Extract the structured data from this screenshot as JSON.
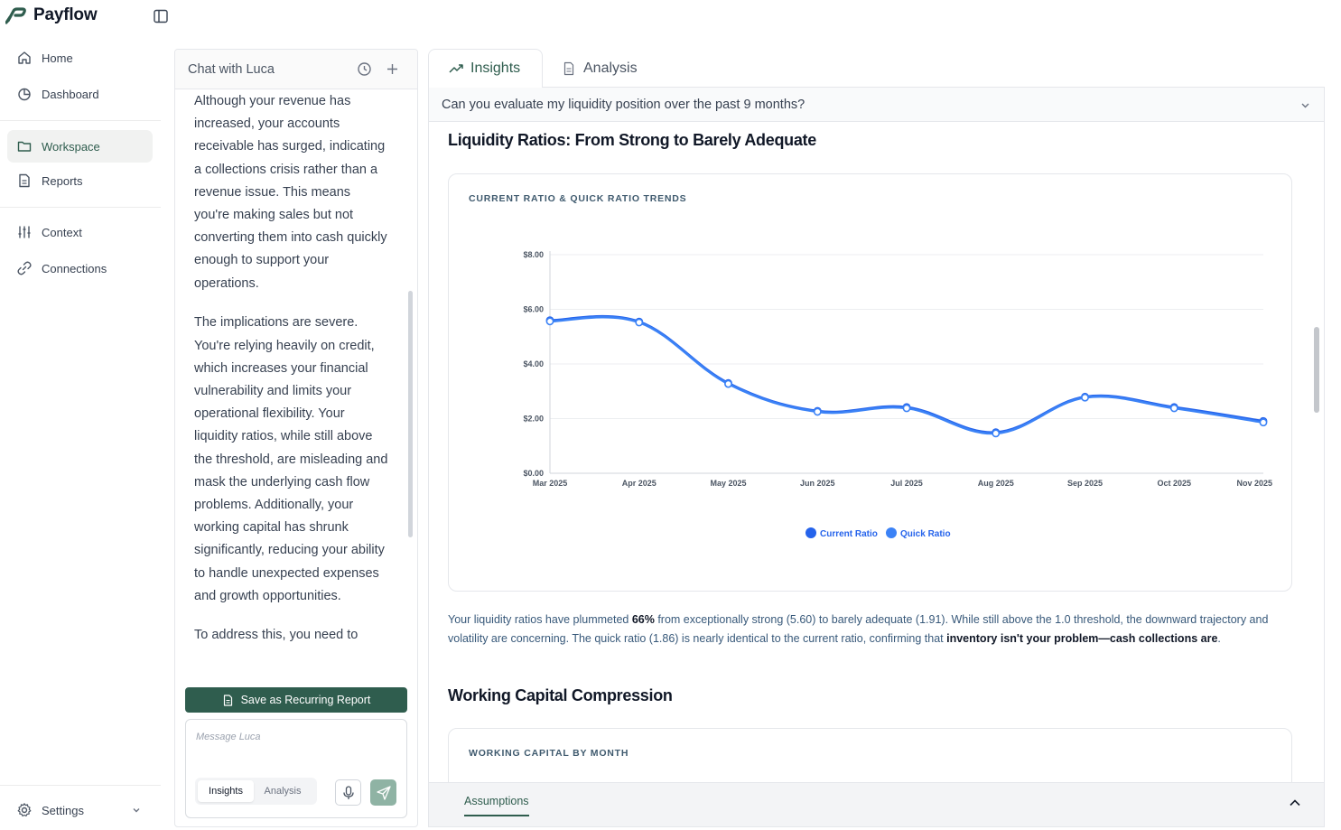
{
  "app": {
    "name": "Payflow"
  },
  "sidebar": {
    "items": [
      {
        "label": "Home",
        "icon": "home-icon"
      },
      {
        "label": "Dashboard",
        "icon": "pie-chart-icon"
      },
      {
        "label": "Workspace",
        "icon": "folder-icon",
        "active": true
      },
      {
        "label": "Reports",
        "icon": "document-icon"
      },
      {
        "label": "Context",
        "icon": "sliders-icon"
      },
      {
        "label": "Connections",
        "icon": "link-icon"
      }
    ],
    "settings_label": "Settings"
  },
  "chat": {
    "title": "Chat with Luca",
    "paragraphs": [
      "Although your revenue has increased, your accounts receivable has surged, indicating a collections crisis rather than a revenue issue. This means you're making sales but not converting them into cash quickly enough to support your operations.",
      "The implications are severe. You're relying heavily on credit, which increases your financial vulnerability and limits your operational flexibility. Your liquidity ratios, while still above the threshold, are misleading and mask the underlying cash flow problems. Additionally, your working capital has shrunk significantly, reducing your ability to handle unexpected expenses and growth opportunities.",
      "To address this, you need to"
    ],
    "save_button": "Save as Recurring Report",
    "input_placeholder": "Message Luca",
    "mode_options": [
      "Insights",
      "Analysis"
    ],
    "mode_selected": "Insights"
  },
  "tabs": [
    {
      "label": "Insights",
      "icon": "trend-up-icon",
      "active": true
    },
    {
      "label": "Analysis",
      "icon": "document-icon",
      "active": false
    }
  ],
  "question": "Can you evaluate my liquidity position over the past 9 months?",
  "section1": {
    "heading": "Liquidity Ratios: From Strong to Barely Adequate",
    "card_title": "CURRENT RATIO & QUICK RATIO TRENDS"
  },
  "chart_data": {
    "type": "line",
    "title": "CURRENT RATIO & QUICK RATIO TRENDS",
    "categories": [
      "Mar 2025",
      "Apr 2025",
      "May 2025",
      "Jun 2025",
      "Jul 2025",
      "Aug 2025",
      "Sep 2025",
      "Oct 2025",
      "Nov 2025"
    ],
    "series": [
      {
        "name": "Current Ratio",
        "values": [
          5.6,
          5.55,
          3.3,
          2.28,
          2.42,
          1.5,
          2.8,
          2.42,
          1.91
        ],
        "color": "#2563eb"
      },
      {
        "name": "Quick Ratio",
        "values": [
          5.56,
          5.52,
          3.27,
          2.25,
          2.38,
          1.46,
          2.77,
          2.38,
          1.86
        ],
        "color": "#3b82f6"
      }
    ],
    "y_ticks": [
      "$0.00",
      "$2.00",
      "$4.00",
      "$6.00",
      "$8.00"
    ],
    "ylim": [
      0,
      8
    ],
    "grid": true,
    "legend_position": "bottom-center"
  },
  "insight": {
    "part1": "Your liquidity ratios have plummeted ",
    "bold1": "66%",
    "part2": " from exceptionally strong (5.60) to barely adequate (1.91). While still above the 1.0 threshold, the downward trajectory and volatility are concerning. The quick ratio (1.86) is nearly identical to the current ratio, confirming that ",
    "bold2": "inventory isn't your problem—cash collections are",
    "part3": "."
  },
  "section2": {
    "heading": "Working Capital Compression",
    "card_title": "WORKING CAPITAL BY MONTH"
  },
  "footer": {
    "tab_label": "Assumptions"
  },
  "colors": {
    "brand": "#2f5d4e",
    "chart_line": "#2563eb",
    "text_blue": "#38597a"
  }
}
